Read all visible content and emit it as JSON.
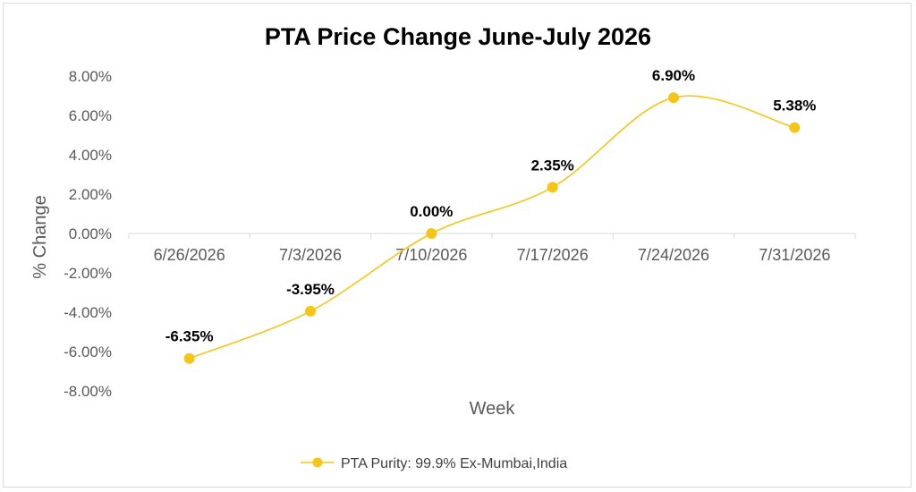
{
  "chart_data": {
    "type": "line",
    "title": "PTA Price Change June-July 2026",
    "xlabel": "Week",
    "ylabel": "% Change",
    "categories": [
      "6/26/2026",
      "7/3/2026",
      "7/10/2026",
      "7/17/2026",
      "7/24/2026",
      "7/31/2026"
    ],
    "series": [
      {
        "name": "PTA Purity: 99.9% Ex-Mumbai,India",
        "values": [
          -6.35,
          -3.95,
          0.0,
          2.35,
          6.9,
          5.38
        ],
        "data_labels": [
          "-6.35%",
          "-3.95%",
          "0.00%",
          "2.35%",
          "6.90%",
          "5.38%"
        ],
        "color": "#F5C518",
        "smooth": true
      }
    ],
    "ylim": [
      -8,
      8
    ],
    "yticks": [
      8,
      6,
      4,
      2,
      0,
      -2,
      -4,
      -6,
      -8
    ],
    "ytick_labels": [
      "8.00%",
      "6.00%",
      "4.00%",
      "2.00%",
      "0.00%",
      "-2.00%",
      "-4.00%",
      "-6.00%",
      "-8.00%"
    ],
    "grid": false,
    "legend_position": "bottom",
    "x_axis_crosses_at": 0
  }
}
